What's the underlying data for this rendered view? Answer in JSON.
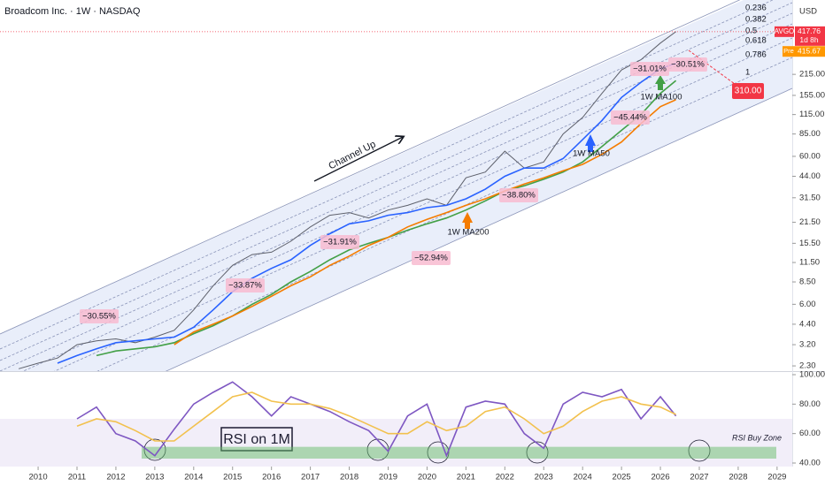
{
  "chart_data": [
    {
      "type": "line",
      "title": "Broadcom Inc. · 1W · NASDAQ",
      "unit": "USD",
      "log_scale": true,
      "x": [
        2009.5,
        2010,
        2010.5,
        2011,
        2011.5,
        2012,
        2012.5,
        2013,
        2013.5,
        2014,
        2014.5,
        2015,
        2015.5,
        2016,
        2016.5,
        2017,
        2017.5,
        2018,
        2018.5,
        2019,
        2019.5,
        2020,
        2020.5,
        2021,
        2021.5,
        2022,
        2022.5,
        2023,
        2023.5,
        2024,
        2024.5,
        2025,
        2025.5,
        2026,
        2026.4
      ],
      "xlim": [
        2009.02,
        2029.39
      ],
      "xticks": [
        2010,
        2011,
        2012,
        2013,
        2014,
        2015,
        2016,
        2017,
        2018,
        2019,
        2020,
        2021,
        2022,
        2023,
        2024,
        2025,
        2026,
        2027,
        2028,
        2029
      ],
      "ylim": [
        2.12,
        684
      ],
      "yticks": [
        {
          "value": 2.3,
          "label": "2.30"
        },
        {
          "value": 3.2,
          "label": "3.20"
        },
        {
          "value": 4.4,
          "label": "4.40"
        },
        {
          "value": 6,
          "label": "6.00"
        },
        {
          "value": 8.5,
          "label": "8.50"
        },
        {
          "value": 11.5,
          "label": "11.50"
        },
        {
          "value": 15.5,
          "label": "15.50"
        },
        {
          "value": 21.5,
          "label": "21.50"
        },
        {
          "value": 31.5,
          "label": "31.50"
        },
        {
          "value": 44,
          "label": "44.00"
        },
        {
          "value": 60,
          "label": "60.00"
        },
        {
          "value": 85,
          "label": "85.00"
        },
        {
          "value": 115,
          "label": "115.00"
        },
        {
          "value": 155,
          "label": "155.00"
        },
        {
          "value": 215,
          "label": "215.00"
        }
      ],
      "series": [
        {
          "color": "#5d606b",
          "values": [
            2.2,
            2.4,
            2.6,
            3.2,
            3.4,
            3.5,
            3.3,
            3.6,
            4.0,
            5.5,
            8,
            11,
            13,
            13.5,
            16,
            20,
            24,
            25,
            23,
            26,
            28,
            31,
            28,
            43,
            47,
            65,
            50,
            55,
            85,
            110,
            160,
            230,
            270,
            350,
            417.76
          ]
        },
        {
          "name": "1W MA50",
          "color": "#2962ff",
          "values": [
            null,
            null,
            2.4,
            2.7,
            3.0,
            3.3,
            3.4,
            3.5,
            3.6,
            4.2,
            5.5,
            7.3,
            9,
            10.5,
            12,
            15,
            18,
            21,
            22,
            24,
            25,
            27,
            28,
            31,
            36,
            44,
            50,
            50,
            58,
            78,
            105,
            150,
            190,
            235,
            255
          ]
        },
        {
          "name": "1W MA100",
          "color": "#43a047",
          "values": [
            null,
            null,
            null,
            null,
            2.7,
            2.9,
            3.0,
            3.1,
            3.3,
            3.8,
            4.3,
            5.0,
            6,
            7,
            8.5,
            10,
            12,
            14,
            15.5,
            17,
            19,
            21,
            23,
            26,
            30,
            35,
            38,
            42,
            47,
            55,
            70,
            90,
            115,
            160,
            195
          ]
        },
        {
          "name": "1W MA200",
          "color": "#f57c00",
          "values": [
            null,
            null,
            null,
            null,
            null,
            null,
            null,
            null,
            3.2,
            3.9,
            4.4,
            5.0,
            5.8,
            6.8,
            8.0,
            9.2,
            11,
            12.7,
            15,
            17,
            20,
            22.5,
            25,
            28,
            31,
            35,
            39,
            43,
            48,
            53,
            62,
            75,
            100,
            130,
            145
          ]
        }
      ],
      "channel_label": "Channel Up",
      "fib_levels": [
        0.236,
        0.382,
        0.5,
        0.618,
        0.786,
        1
      ],
      "drops": [
        {
          "value": -30.55,
          "label": "−30.55%"
        },
        {
          "value": -33.87,
          "label": "−33.87%"
        },
        {
          "value": -31.91,
          "label": "−31.91%"
        },
        {
          "value": -52.94,
          "label": "−52.94%"
        },
        {
          "value": -38.8,
          "label": "−38.80%"
        },
        {
          "value": -45.44,
          "label": "−45.44%"
        },
        {
          "value": -31.01,
          "label": "−31.01%"
        },
        {
          "value": -30.51,
          "label": "−30.51%"
        }
      ],
      "last_price": {
        "symbol": "AVGO",
        "value": 417.76,
        "label": "417.76",
        "countdown": "1d 8h",
        "color": "#f23645"
      },
      "premarket": {
        "symbol": "Pre",
        "value": 415.67,
        "label": "415.67",
        "color": "#ff9800"
      },
      "target": {
        "value": 310,
        "label": "310.00",
        "color": "#f23645"
      }
    },
    {
      "type": "line",
      "title": "RSI on 1M",
      "zone_label": "RSI Buy Zone",
      "x": [
        2011,
        2011.5,
        2012,
        2012.5,
        2013,
        2013.5,
        2014,
        2014.5,
        2015,
        2015.5,
        2016,
        2016.5,
        2017,
        2017.5,
        2018,
        2018.5,
        2019,
        2019.5,
        2020,
        2020.5,
        2021,
        2021.5,
        2022,
        2022.5,
        2023,
        2023.5,
        2024,
        2024.5,
        2025,
        2025.5,
        2026,
        2026.4
      ],
      "xlim": [
        2009.02,
        2029.39
      ],
      "ylim": [
        37.6,
        102.4
      ],
      "yticks": [
        {
          "value": 40,
          "label": "40.00"
        },
        {
          "value": 60,
          "label": "60.00"
        },
        {
          "value": 80,
          "label": "80.00"
        },
        {
          "value": 100,
          "label": "100.00"
        }
      ],
      "band": [
        30,
        70
      ],
      "buy_zone": [
        43,
        51
      ],
      "series": [
        {
          "color": "#7e57c2",
          "values": [
            70,
            78,
            60,
            55,
            45,
            63,
            80,
            88,
            95,
            85,
            72,
            85,
            80,
            75,
            68,
            62,
            48,
            72,
            80,
            45,
            78,
            82,
            80,
            60,
            50,
            80,
            88,
            85,
            90,
            70,
            85,
            72
          ]
        },
        {
          "color": "#f2c14e",
          "values": [
            65,
            70,
            68,
            62,
            55,
            55,
            65,
            75,
            85,
            88,
            82,
            80,
            80,
            77,
            72,
            66,
            60,
            60,
            68,
            62,
            65,
            75,
            78,
            70,
            60,
            65,
            75,
            82,
            85,
            80,
            78,
            73
          ]
        }
      ]
    }
  ]
}
